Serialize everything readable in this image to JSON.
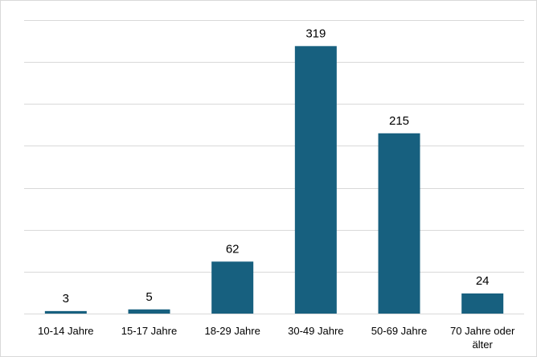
{
  "chart_data": {
    "type": "bar",
    "title": "",
    "xlabel": "",
    "ylabel": "",
    "categories": [
      [
        "10-14 Jahre"
      ],
      [
        "15-17 Jahre"
      ],
      [
        "18-29 Jahre"
      ],
      [
        "30-49 Jahre"
      ],
      [
        "50-69 Jahre"
      ],
      [
        "70 Jahre oder",
        "älter"
      ]
    ],
    "values": [
      3,
      5,
      62,
      319,
      215,
      24
    ],
    "data_labels": [
      "3",
      "5",
      "62",
      "319",
      "215",
      "24"
    ],
    "ylim": [
      0,
      350
    ],
    "y_gridlines": [
      0,
      50,
      100,
      150,
      200,
      250,
      300,
      350
    ],
    "grid": true,
    "legend": "none",
    "bar_color": "#17607f"
  }
}
